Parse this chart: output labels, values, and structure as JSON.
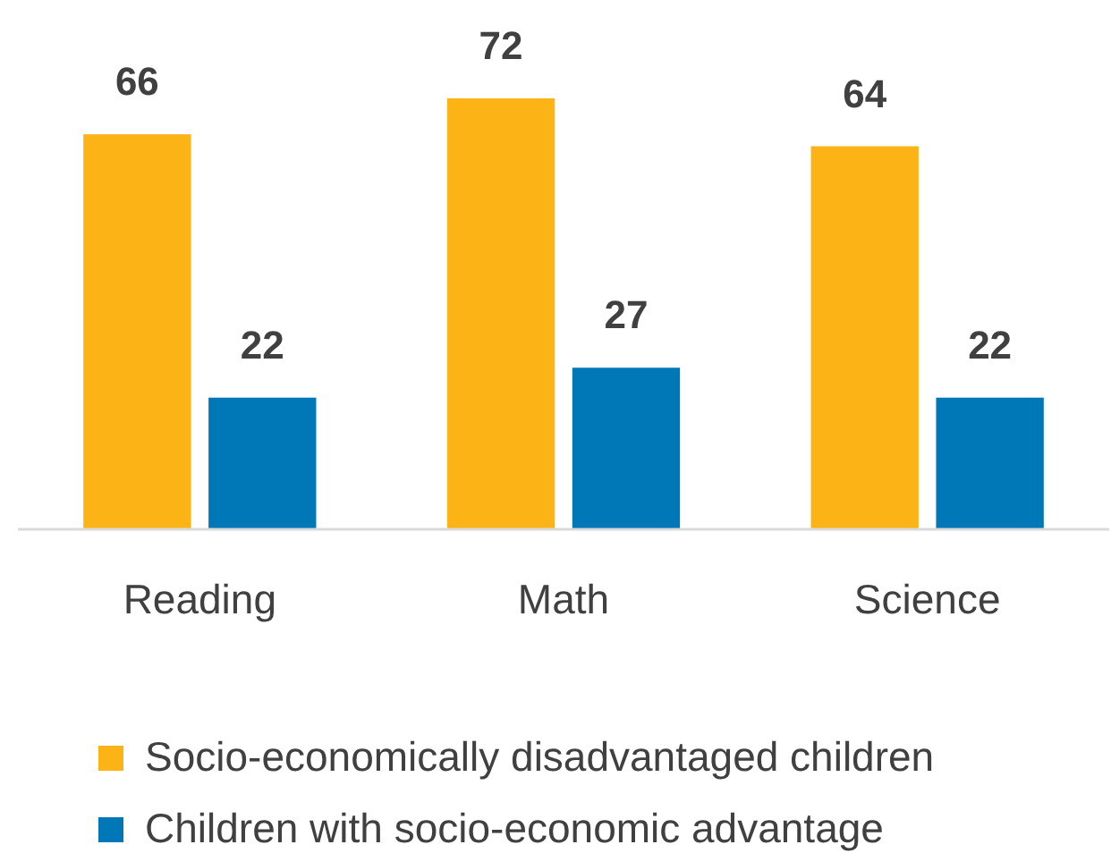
{
  "chart_data": {
    "type": "bar",
    "categories": [
      "Reading",
      "Math",
      "Science"
    ],
    "series": [
      {
        "name": "Socio-economically disadvantaged children",
        "color": "#fbb316",
        "values": [
          66,
          72,
          64
        ]
      },
      {
        "name": "Children with socio-economic advantage",
        "color": "#0077b6",
        "values": [
          22,
          27,
          22
        ]
      }
    ],
    "data_labels": true,
    "legend": "bottom"
  }
}
